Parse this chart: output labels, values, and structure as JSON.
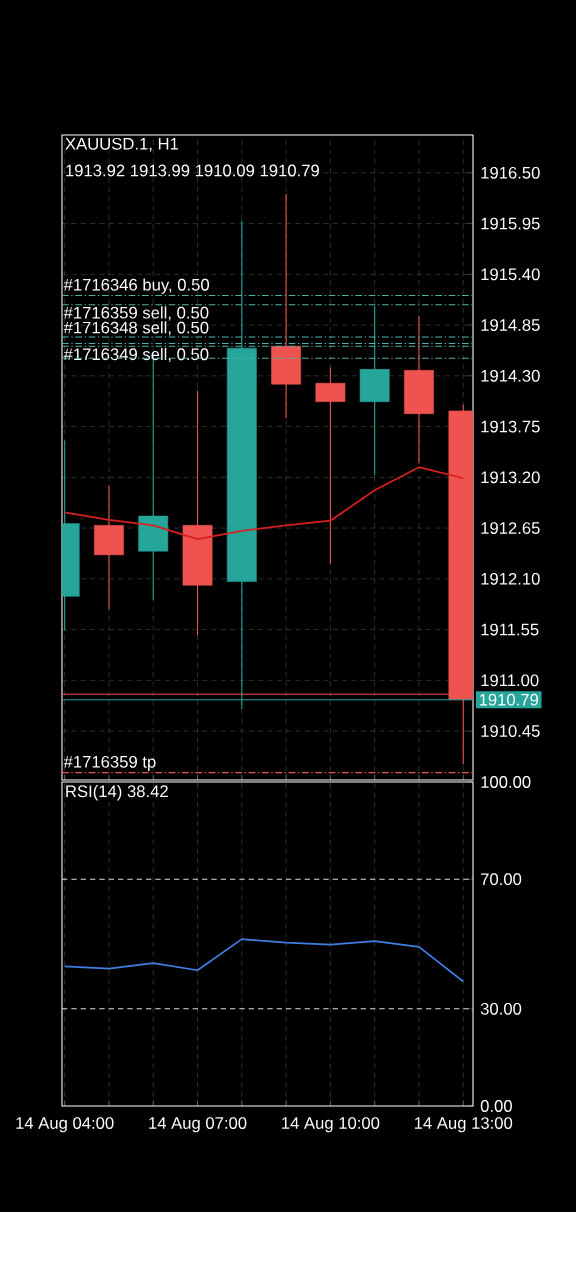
{
  "chart_data": [
    {
      "type": "candlestick",
      "title": "XAUUSD.1, H1",
      "subtitle": "1913.92 1913.99 1910.09 1910.79",
      "categories": [
        null,
        null,
        null,
        null,
        null,
        null,
        null,
        null,
        null,
        null
      ],
      "ohlc": [
        [
          1911.91,
          1913.6,
          1911.54,
          1912.7
        ],
        [
          1912.68,
          1913.11,
          1911.77,
          1912.36
        ],
        [
          1912.4,
          1914.56,
          1911.87,
          1912.78
        ],
        [
          1912.68,
          1914.14,
          1911.49,
          1912.03
        ],
        [
          1912.07,
          1915.98,
          1910.69,
          1914.6
        ],
        [
          1914.62,
          1916.27,
          1913.84,
          1914.21
        ],
        [
          1914.22,
          1914.39,
          1912.26,
          1914.02
        ],
        [
          1914.02,
          1915.06,
          1913.22,
          1914.37
        ],
        [
          1914.36,
          1914.95,
          1913.35,
          1913.89
        ],
        [
          1913.92,
          1913.99,
          1910.09,
          1910.79
        ]
      ],
      "colors": [
        "#26a69a",
        "#ef5350",
        "#26a69a",
        "#ef5350",
        "#26a69a",
        "#ef5350",
        "#ef5350",
        "#26a69a",
        "#ef5350",
        "#ef5350"
      ],
      "series": [
        {
          "type": "line",
          "color": "#d82020",
          "values": [
            1912.82,
            1912.74,
            1912.68,
            1912.53,
            1912.62,
            1912.68,
            1912.73,
            1913.06,
            1913.31,
            1913.19
          ]
        }
      ],
      "ylim": [
        1909.92,
        1916.91
      ],
      "yticks": [
        {
          "value": 1916.5,
          "label": "1916.50"
        },
        {
          "value": 1915.95,
          "label": "1915.95"
        },
        {
          "value": 1915.4,
          "label": "1915.40"
        },
        {
          "value": 1914.85,
          "label": "1914.85"
        },
        {
          "value": 1914.3,
          "label": "1914.30"
        },
        {
          "value": 1913.75,
          "label": "1913.75"
        },
        {
          "value": 1913.2,
          "label": "1913.20"
        },
        {
          "value": 1912.65,
          "label": "1912.65"
        },
        {
          "value": 1912.1,
          "label": "1912.10"
        },
        {
          "value": 1911.55,
          "label": "1911.55"
        },
        {
          "value": 1911.0,
          "label": "1911.00"
        },
        {
          "value": 1910.45,
          "label": "1910.45"
        }
      ],
      "grid": true,
      "ref_lines": [
        {
          "axis": "y",
          "value": 1915.17,
          "label": "#1716346 buy, 0.50",
          "color": "#4fb3a9",
          "line_style": "dashed"
        },
        {
          "axis": "y",
          "value": 1915.07,
          "label": "#1716359 sell, 0.50",
          "color": "#4fb3a9",
          "line_style": "dashed"
        },
        {
          "axis": "y",
          "value": 1914.72,
          "label": "#1716348 sell, 0.50",
          "color": "#4fb3a9",
          "line_style": "dashed"
        },
        {
          "axis": "y",
          "value": 1914.62,
          "label": "#1716349 sell, 0.50",
          "color": "#4fb3a9",
          "line_style": "dashed"
        },
        {
          "axis": "y",
          "value": 1914.65,
          "color": "#4fb3a9",
          "line_style": "dashed"
        },
        {
          "axis": "y",
          "value": 1914.49,
          "color": "#4fb3a9",
          "line_style": "dashed"
        },
        {
          "axis": "y",
          "value": 1910.0,
          "label": "#1716359 tp",
          "color": "#ef5350",
          "line_style": "dashed"
        },
        {
          "axis": "y",
          "value": 1910.85,
          "color": "#ef5350",
          "line_style": "solid"
        },
        {
          "axis": "y",
          "value": 1910.79,
          "label": "1910.79",
          "color": "#26a69a",
          "line_style": "solid"
        }
      ]
    },
    {
      "type": "line",
      "title": "RSI(14) 38.42",
      "categories": [
        "14 Aug 04:00",
        null,
        null,
        "14 Aug 07:00",
        null,
        null,
        "14 Aug 10:00",
        null,
        null,
        "14 Aug 13:00"
      ],
      "series": [
        {
          "color": "#3f7fe0",
          "values": [
            43.1,
            42.4,
            44.1,
            41.9,
            51.5,
            50.4,
            49.8,
            50.9,
            49.1,
            38.42
          ]
        }
      ],
      "ylim": [
        0,
        100
      ],
      "yticks": [
        {
          "value": 100,
          "label": "100.00"
        },
        {
          "value": 70,
          "label": "70.00"
        },
        {
          "value": 30,
          "label": "30.00"
        },
        {
          "value": 0,
          "label": "0.00"
        }
      ],
      "grid": "x",
      "ref_lines": [
        {
          "axis": "y",
          "value": 70,
          "color": "#dddddd",
          "line_style": "dashed"
        },
        {
          "axis": "y",
          "value": 30,
          "color": "#dddddd",
          "line_style": "dashed"
        }
      ]
    }
  ]
}
